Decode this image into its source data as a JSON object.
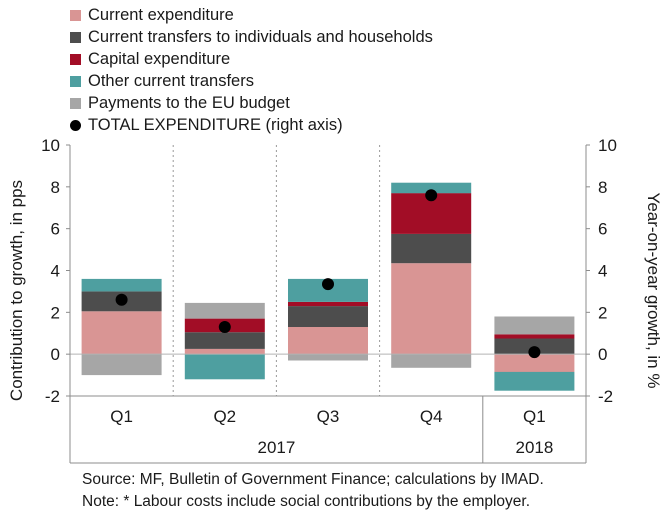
{
  "chart_data": {
    "type": "bar",
    "stacked": true,
    "categories": [
      "Q1",
      "Q2",
      "Q3",
      "Q4",
      "Q1"
    ],
    "category_groups": [
      {
        "label": "2017",
        "categories": [
          0,
          1,
          2,
          3
        ]
      },
      {
        "label": "2018",
        "categories": [
          4
        ]
      }
    ],
    "series": [
      {
        "name": "Current expenditure",
        "color": "#d99594",
        "values": [
          2.05,
          0.25,
          1.3,
          4.35,
          -0.85
        ]
      },
      {
        "name": "Current transfers to individuals and households",
        "color": "#4d4d4d",
        "values": [
          0.95,
          0.8,
          1.0,
          1.4,
          0.75
        ]
      },
      {
        "name": "Capital expenditure",
        "color": "#a20d26",
        "values": [
          0.0,
          0.65,
          0.2,
          1.95,
          0.2
        ]
      },
      {
        "name": "Other current transfers",
        "color": "#4e9fa0",
        "values": [
          0.6,
          -1.2,
          1.1,
          0.5,
          -0.9
        ]
      },
      {
        "name": "Payments to the EU budget",
        "color": "#a6a6a6",
        "values": [
          -1.0,
          0.75,
          -0.3,
          -0.65,
          0.85
        ]
      }
    ],
    "total_series": {
      "name": "TOTAL EXPENDITURE (right axis)",
      "color": "#000000",
      "values": [
        2.6,
        1.3,
        3.35,
        7.6,
        0.1
      ]
    },
    "ylabel": "Contribution to growth, in pps",
    "y2label": "Year-on-year growth, in %",
    "ylim": [
      -2,
      10
    ],
    "y2lim": [
      -2,
      10
    ],
    "yticks": [
      "-2",
      "0",
      "2",
      "4",
      "6",
      "8",
      "10"
    ],
    "y2ticks": [
      "-2",
      "0",
      "2",
      "4",
      "6",
      "8",
      "10"
    ],
    "grid": "vertical dotted separators",
    "legend_position": "top-left"
  },
  "footer": {
    "source": "Source: MF, Bulletin of Government Finance; calculations by IMAD.",
    "note": "Note: * Labour costs include social contributions by the employer."
  }
}
